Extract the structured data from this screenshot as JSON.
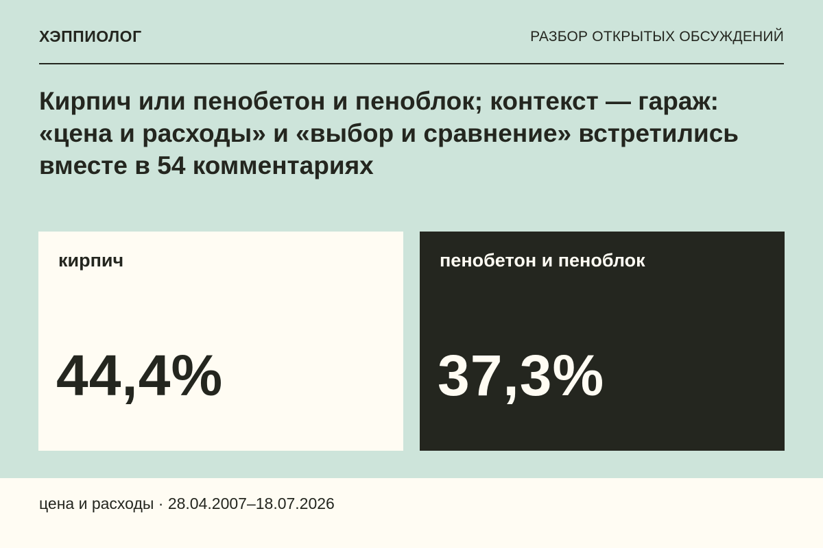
{
  "header": {
    "brand": "ХЭППИОЛОГ",
    "section": "РАЗБОР ОТКРЫТЫХ ОБСУЖДЕНИЙ"
  },
  "title": "Кирпич или пенобетон и пеноблок; контекст — гараж: «цена и расходы» и «выбор и сравнение» встретились вместе в 54 комментариях",
  "cards": [
    {
      "label": "кирпич",
      "value": "44,4%"
    },
    {
      "label": "пенобетон и пеноблок",
      "value": "37,3%"
    }
  ],
  "footer": {
    "text": "цена и расходы · 28.04.2007–18.07.2026"
  },
  "colors": {
    "background": "#cde4da",
    "light": "#fffcf3",
    "dark": "#24261f"
  }
}
